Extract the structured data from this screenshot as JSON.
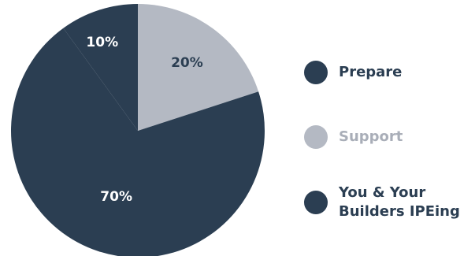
{
  "colors": {
    "dark": "#2b3e52",
    "light": "#b4b9c3",
    "dark_label": "#2b3e52",
    "light_label": "#a9aeb8",
    "dark_slice_text": "#ffffff",
    "light_slice_text": "#2b3e52"
  },
  "chart_data": {
    "type": "pie",
    "title": "",
    "slices": [
      {
        "name": "Prepare",
        "value": 10,
        "label": "10%",
        "color": "#2b3e52",
        "text_color": "#ffffff"
      },
      {
        "name": "Support",
        "value": 20,
        "label": "20%",
        "color": "#b4b9c3",
        "text_color": "#2b3e52"
      },
      {
        "name": "You & Your Builders IPEing",
        "value": 70,
        "label": "70%",
        "color": "#2b3e52",
        "text_color": "#ffffff"
      }
    ],
    "legend_position": "right"
  },
  "legend": [
    {
      "label": "Prepare",
      "color": "#2b3e52",
      "text_color": "#2b3e52"
    },
    {
      "label": "Support",
      "color": "#b4b9c3",
      "text_color": "#a9aeb8"
    },
    {
      "label": "You & Your Builders IPEing",
      "color": "#2b3e52",
      "text_color": "#2b3e52"
    }
  ]
}
